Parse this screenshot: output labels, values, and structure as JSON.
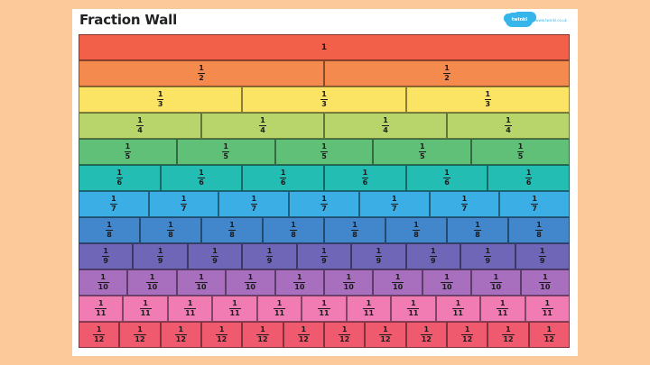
{
  "header": {
    "title": "Fraction Wall",
    "brand_name": "twinkl",
    "brand_url": "www.twinkl.co.uk"
  },
  "wall": {
    "whole_label": "1",
    "numerator": "1",
    "rows": [
      {
        "denominator": "1",
        "pieces": 1,
        "color": "#f2604a"
      },
      {
        "denominator": "2",
        "pieces": 2,
        "color": "#f58a4e"
      },
      {
        "denominator": "3",
        "pieces": 3,
        "color": "#fbe463"
      },
      {
        "denominator": "4",
        "pieces": 4,
        "color": "#b7d56a"
      },
      {
        "denominator": "5",
        "pieces": 5,
        "color": "#61c078"
      },
      {
        "denominator": "6",
        "pieces": 6,
        "color": "#23bdb4"
      },
      {
        "denominator": "7",
        "pieces": 7,
        "color": "#3caee6"
      },
      {
        "denominator": "8",
        "pieces": 8,
        "color": "#4287cc"
      },
      {
        "denominator": "9",
        "pieces": 9,
        "color": "#7066b7"
      },
      {
        "denominator": "10",
        "pieces": 10,
        "color": "#a86fbf"
      },
      {
        "denominator": "11",
        "pieces": 11,
        "color": "#f17cb4"
      },
      {
        "denominator": "12",
        "pieces": 12,
        "color": "#ef5a6e"
      }
    ]
  }
}
